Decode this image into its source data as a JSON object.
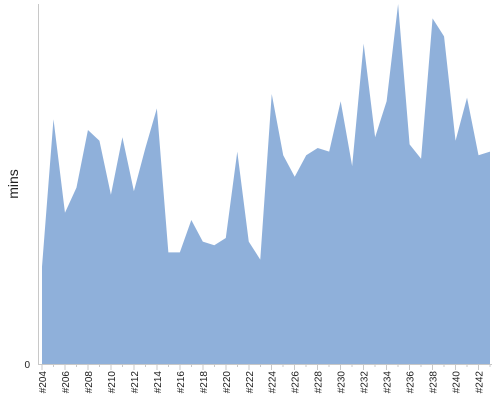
{
  "chart_data": {
    "type": "area",
    "title": "",
    "xlabel": "",
    "ylabel": "mins",
    "y_tick_labels": [
      "0"
    ],
    "ylim": [
      0,
      100
    ],
    "grid": false,
    "legend": "none",
    "x_tick_every": 2,
    "x": [
      "#204",
      "#205",
      "#206",
      "#207",
      "#208",
      "#209",
      "#210",
      "#211",
      "#212",
      "#213",
      "#214",
      "#215",
      "#216",
      "#217",
      "#218",
      "#219",
      "#220",
      "#221",
      "#222",
      "#223",
      "#224",
      "#225",
      "#226",
      "#227",
      "#228",
      "#229",
      "#230",
      "#231",
      "#232",
      "#233",
      "#234",
      "#235",
      "#236",
      "#237",
      "#238",
      "#239",
      "#240",
      "#241",
      "#242",
      "#243"
    ],
    "series": [
      {
        "color": "#8fb0da",
        "values": [
          27,
          68,
          42,
          49,
          65,
          62,
          47,
          63,
          48,
          60,
          71,
          31,
          31,
          40,
          34,
          33,
          35,
          59,
          34,
          29,
          75,
          58,
          52,
          58,
          60,
          59,
          73,
          55,
          89,
          63,
          73,
          100,
          61,
          57,
          96,
          91,
          62,
          74,
          58,
          59
        ]
      }
    ]
  }
}
